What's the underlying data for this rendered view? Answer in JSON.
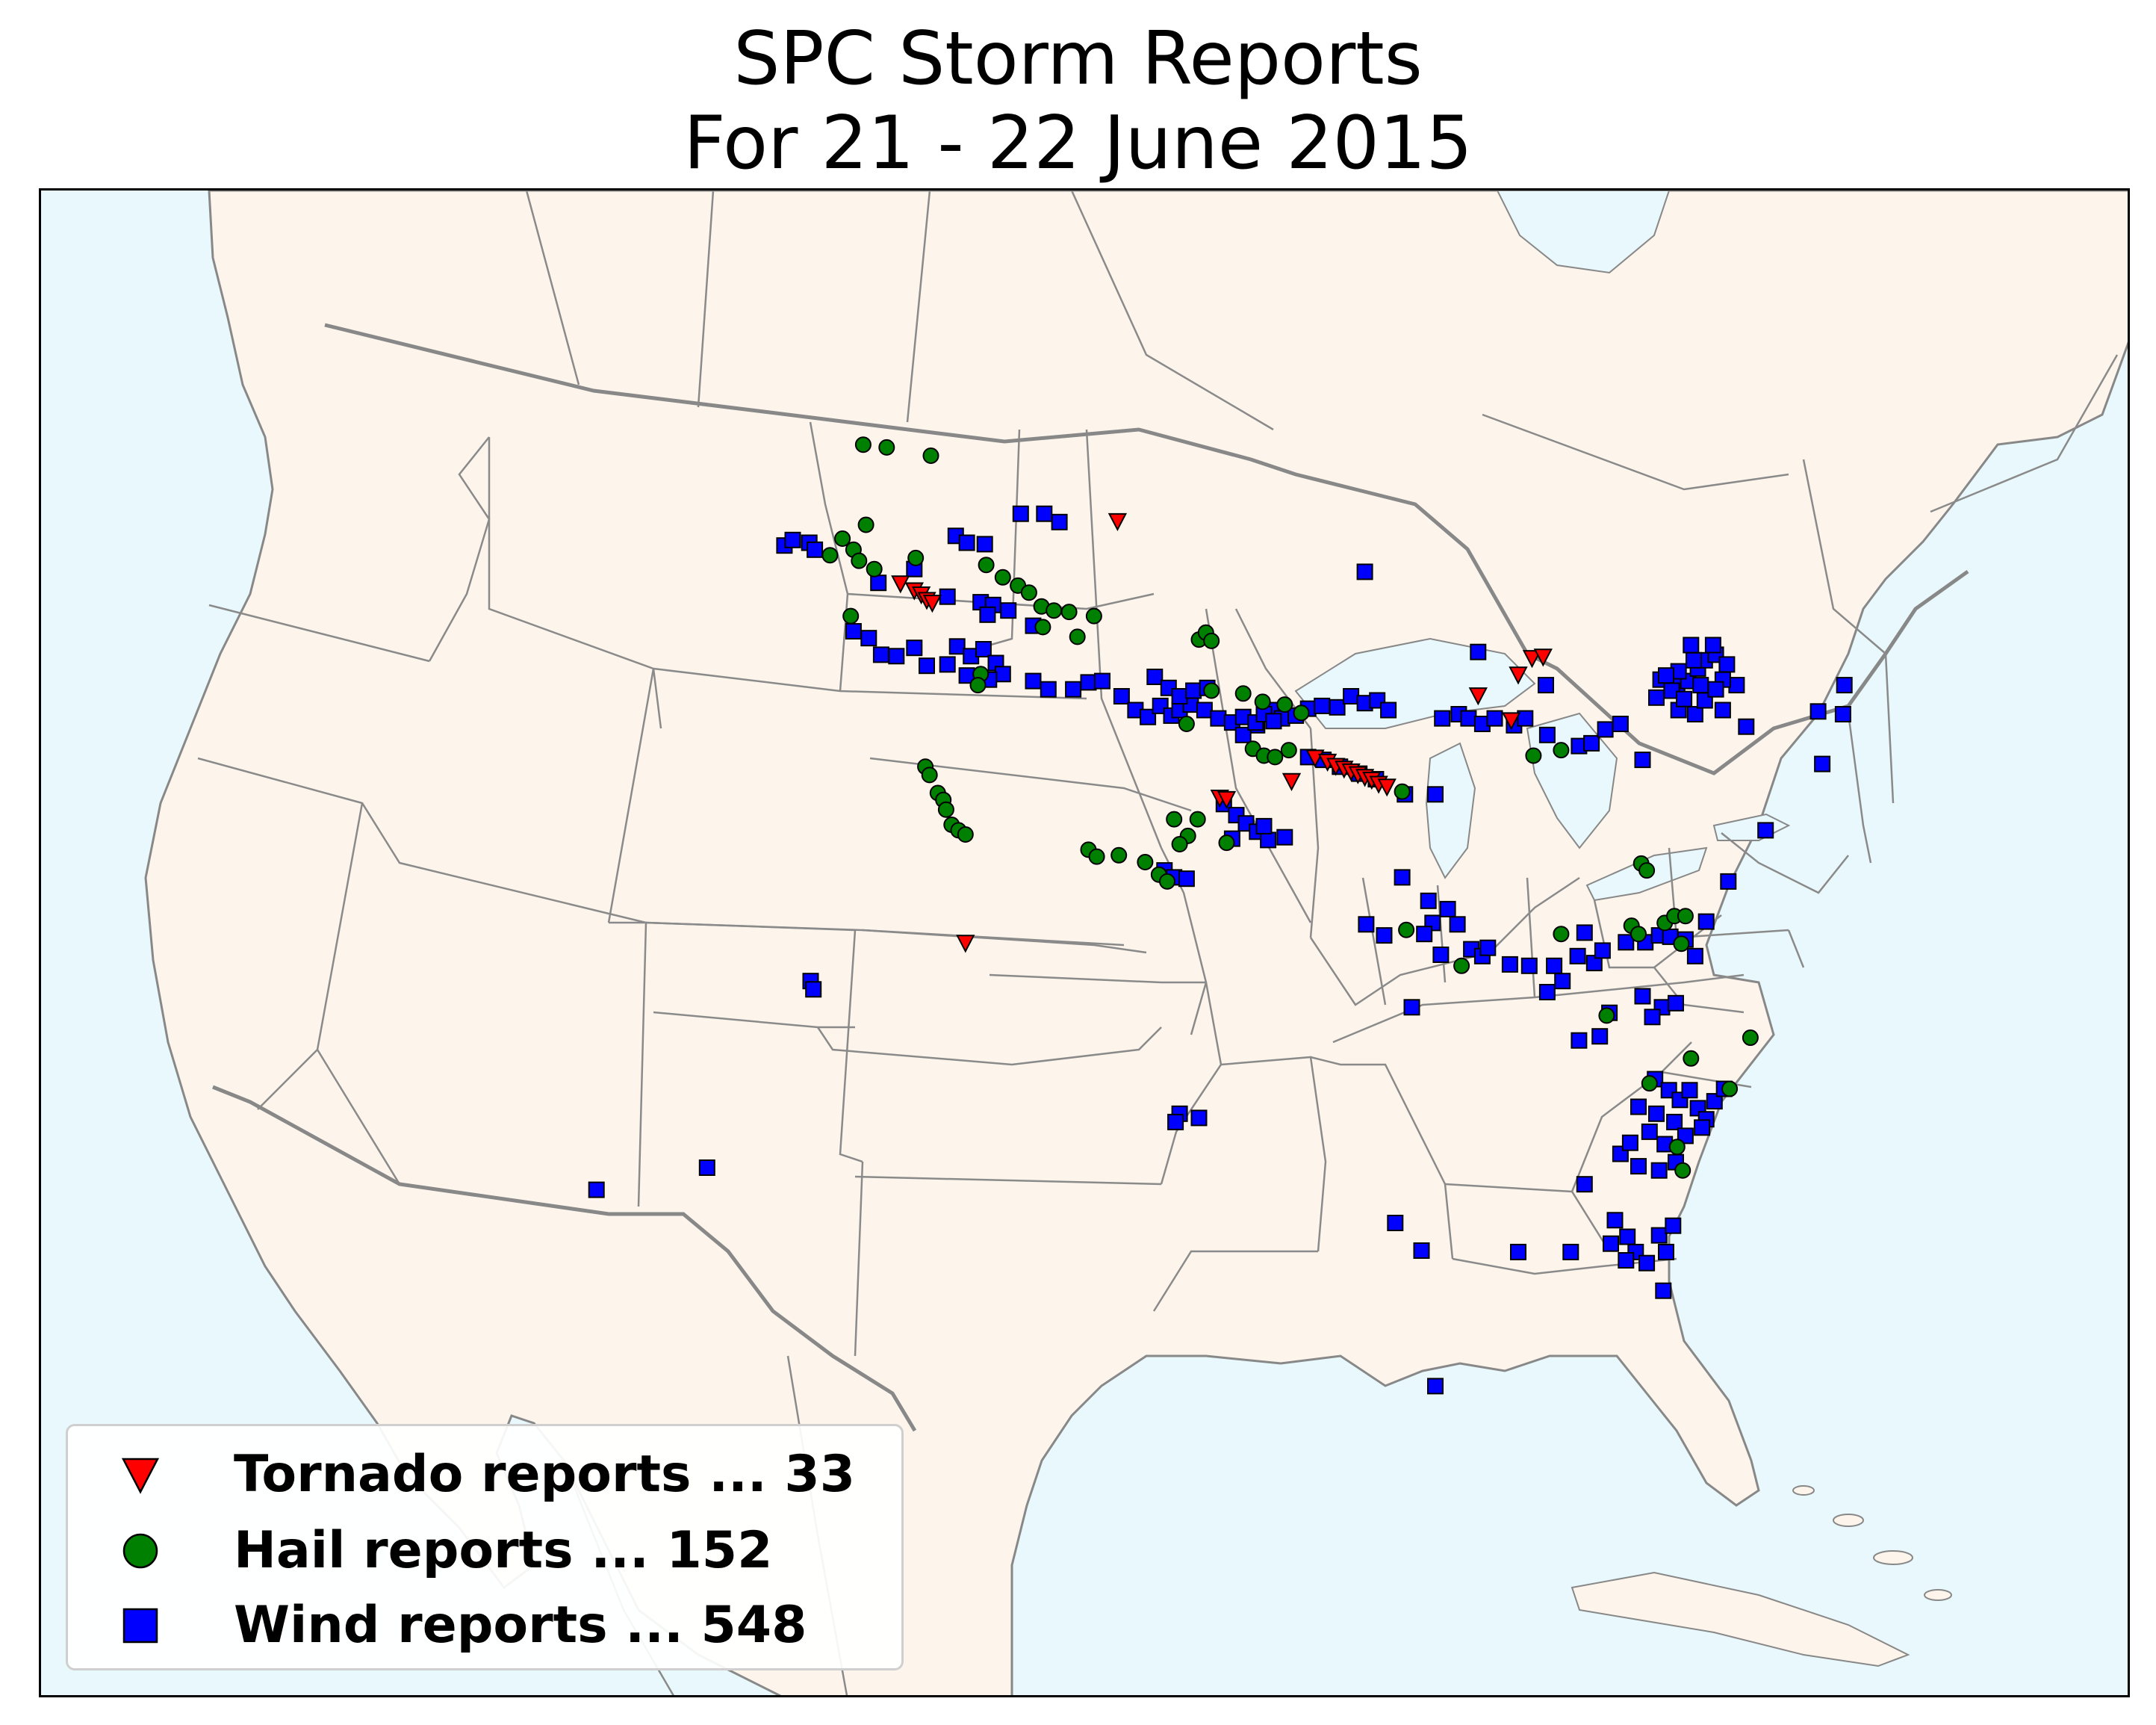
{
  "title": {
    "line1": "SPC Storm Reports",
    "line2": "For 21 - 22 June 2015"
  },
  "colors": {
    "ocean": "#e8f8fc",
    "land": "#fdf5ec",
    "border": "#888888",
    "tornado": "#ff0000",
    "hail": "#008000",
    "wind": "#0000ff"
  },
  "legend": [
    {
      "key": "tornado",
      "label": "Tornado reports ... 33",
      "marker": "triangle-down",
      "color": "#ff0000"
    },
    {
      "key": "hail",
      "label": "Hail reports ... 152",
      "marker": "circle",
      "color": "#008000"
    },
    {
      "key": "wind",
      "label": "Wind reports ... 548",
      "marker": "square",
      "color": "#0000ff"
    }
  ],
  "map": {
    "region": "United States and southern Canada",
    "legend_position": "lower-left",
    "marker_note": "report locations as shown on the map"
  }
}
